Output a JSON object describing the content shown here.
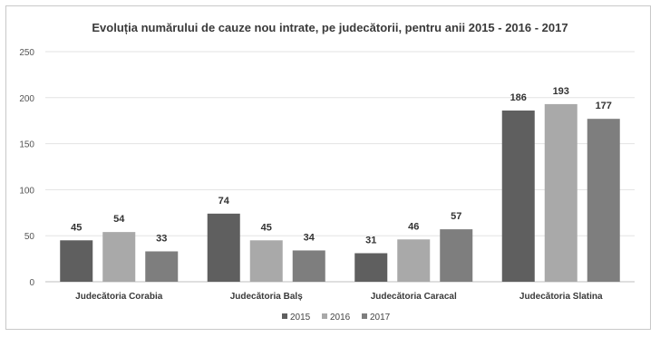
{
  "chart_data": {
    "type": "bar",
    "title": "Evoluția numărului de cauze nou intrate, pe judecătorii, pentru anii 2015 - 2016 - 2017",
    "categories": [
      "Judecătoria Corabia",
      "Judecătoria Balș",
      "Judecătoria Caracal",
      "Judecătoria Slatina"
    ],
    "series": [
      {
        "name": "2015",
        "values": [
          45,
          74,
          31,
          186
        ],
        "color": "#5f5f5f"
      },
      {
        "name": "2016",
        "values": [
          54,
          45,
          46,
          193
        ],
        "color": "#a9a9a9"
      },
      {
        "name": "2017",
        "values": [
          33,
          34,
          57,
          177
        ],
        "color": "#7e7e7e"
      }
    ],
    "ylim": [
      0,
      250
    ],
    "yticks": [
      0,
      50,
      100,
      150,
      200,
      250
    ],
    "grid": true,
    "data_labels": true,
    "legend_position": "bottom"
  }
}
